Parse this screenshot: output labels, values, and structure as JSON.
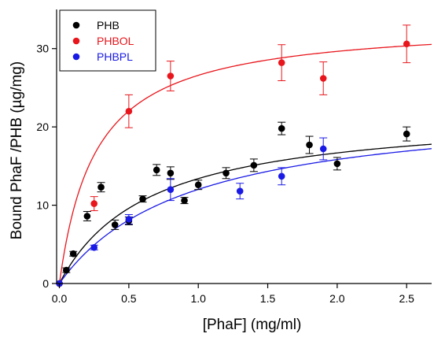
{
  "chart_data": {
    "type": "scatter",
    "title": "",
    "xlabel": "[PhaF] (mg/ml)",
    "ylabel": "Bound PhaF /PHB (µg/mg)",
    "xlim": [
      -0.02,
      2.68
    ],
    "ylim": [
      0,
      35
    ],
    "x_ticks": [
      0.0,
      0.5,
      1.0,
      1.5,
      2.0,
      2.5
    ],
    "x_tick_labels": [
      "0.0",
      "0.5",
      "1.0",
      "1.5",
      "2.0",
      "2.5"
    ],
    "y_ticks": [
      0,
      10,
      20,
      30
    ],
    "y_tick_labels": [
      "0",
      "10",
      "20",
      "30"
    ],
    "grid": false,
    "legend_position": "top-left",
    "series": [
      {
        "name": "PHB",
        "color": "#000000",
        "marker": "circle",
        "points": [
          {
            "x": 0.0,
            "y": 0.0,
            "err": 0.0
          },
          {
            "x": 0.05,
            "y": 1.7,
            "err": 0.3
          },
          {
            "x": 0.1,
            "y": 3.8,
            "err": 0.3
          },
          {
            "x": 0.2,
            "y": 8.6,
            "err": 0.6
          },
          {
            "x": 0.3,
            "y": 12.3,
            "err": 0.6
          },
          {
            "x": 0.4,
            "y": 7.5,
            "err": 0.6
          },
          {
            "x": 0.5,
            "y": 8.0,
            "err": 0.5
          },
          {
            "x": 0.6,
            "y": 10.8,
            "err": 0.4
          },
          {
            "x": 0.7,
            "y": 14.5,
            "err": 0.7
          },
          {
            "x": 0.8,
            "y": 14.1,
            "err": 0.8
          },
          {
            "x": 0.9,
            "y": 10.6,
            "err": 0.4
          },
          {
            "x": 1.0,
            "y": 12.6,
            "err": 0.6
          },
          {
            "x": 1.2,
            "y": 14.1,
            "err": 0.7
          },
          {
            "x": 1.4,
            "y": 15.1,
            "err": 0.8
          },
          {
            "x": 1.6,
            "y": 19.8,
            "err": 0.8
          },
          {
            "x": 1.8,
            "y": 17.7,
            "err": 1.1
          },
          {
            "x": 2.0,
            "y": 15.3,
            "err": 0.8
          },
          {
            "x": 2.5,
            "y": 19.1,
            "err": 0.9
          }
        ],
        "fit": {
          "bmax": 22.1,
          "kd": 0.65
        }
      },
      {
        "name": "PHBOL",
        "color": "#e8161c",
        "marker": "circle",
        "points": [
          {
            "x": 0.0,
            "y": 0.0,
            "err": 0.0
          },
          {
            "x": 0.25,
            "y": 10.2,
            "err": 0.9
          },
          {
            "x": 0.5,
            "y": 22.0,
            "err": 2.1
          },
          {
            "x": 0.8,
            "y": 26.5,
            "err": 1.9
          },
          {
            "x": 1.6,
            "y": 28.2,
            "err": 2.3
          },
          {
            "x": 1.9,
            "y": 26.2,
            "err": 2.1
          },
          {
            "x": 2.5,
            "y": 30.6,
            "err": 2.4
          }
        ],
        "fit": {
          "bmax": 33.5,
          "kd": 0.26
        }
      },
      {
        "name": "PHBPL",
        "color": "#1a1ae6",
        "marker": "circle",
        "points": [
          {
            "x": 0.0,
            "y": 0.0,
            "err": 0.0
          },
          {
            "x": 0.25,
            "y": 4.6,
            "err": 0.3
          },
          {
            "x": 0.5,
            "y": 8.2,
            "err": 0.6
          },
          {
            "x": 0.8,
            "y": 12.0,
            "err": 1.4
          },
          {
            "x": 1.3,
            "y": 11.8,
            "err": 1.0
          },
          {
            "x": 1.6,
            "y": 13.7,
            "err": 1.1
          },
          {
            "x": 1.9,
            "y": 17.2,
            "err": 1.4
          }
        ],
        "fit": {
          "bmax": 23.2,
          "kd": 0.93
        }
      }
    ]
  }
}
